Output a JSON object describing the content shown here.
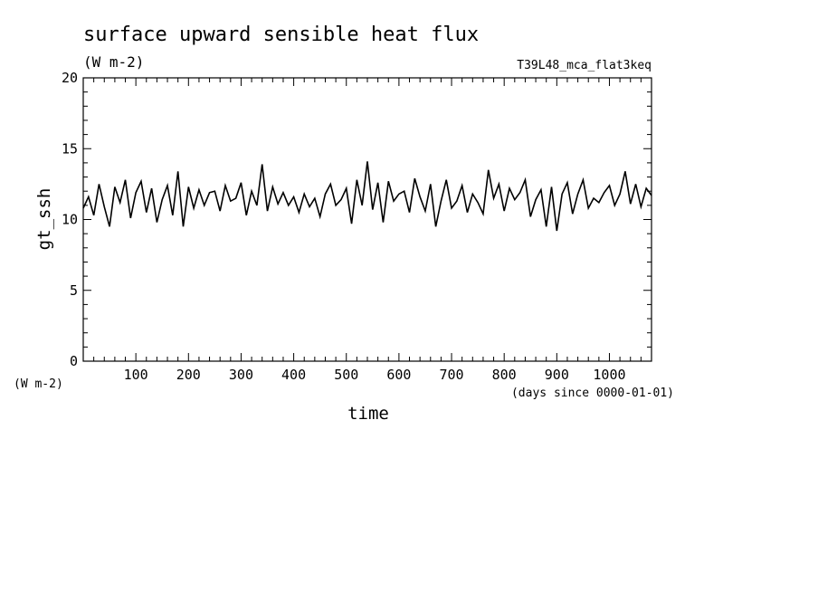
{
  "chart_data": {
    "type": "line",
    "title": "surface upward sensible heat flux",
    "units": "(W m-2)",
    "run_id": "T39L48_mca_flat3keq",
    "ylabel": "gt_ssh",
    "y_units_label": "(W m-2)",
    "xlabel": "time",
    "x_units_label": "(days since 0000-01-01)",
    "xlim": [
      0,
      1080
    ],
    "ylim": [
      0,
      20
    ],
    "xticks": [
      100,
      200,
      300,
      400,
      500,
      600,
      700,
      800,
      900,
      1000
    ],
    "yticks": [
      0,
      5,
      10,
      15,
      20
    ],
    "grid": false,
    "series": [
      {
        "color": "#000000",
        "x": [
          0,
          10,
          20,
          30,
          40,
          50,
          60,
          70,
          80,
          90,
          100,
          110,
          120,
          130,
          140,
          150,
          160,
          170,
          180,
          190,
          200,
          210,
          220,
          230,
          240,
          250,
          260,
          270,
          280,
          290,
          300,
          310,
          320,
          330,
          340,
          350,
          360,
          370,
          380,
          390,
          400,
          410,
          420,
          430,
          440,
          450,
          460,
          470,
          480,
          490,
          500,
          510,
          520,
          530,
          540,
          550,
          560,
          570,
          580,
          590,
          600,
          610,
          620,
          630,
          640,
          650,
          660,
          670,
          680,
          690,
          700,
          710,
          720,
          730,
          740,
          750,
          760,
          770,
          780,
          790,
          800,
          810,
          820,
          830,
          840,
          850,
          860,
          870,
          880,
          890,
          900,
          910,
          920,
          930,
          940,
          950,
          960,
          970,
          980,
          990,
          1000,
          1010,
          1020,
          1030,
          1040,
          1050,
          1060,
          1070,
          1080
        ],
        "y": [
          10.8,
          11.6,
          10.3,
          12.5,
          10.9,
          9.5,
          12.3,
          11.2,
          12.8,
          10.1,
          11.9,
          12.7,
          10.5,
          12.2,
          9.8,
          11.4,
          12.4,
          10.3,
          13.4,
          9.5,
          12.3,
          10.8,
          12.1,
          11.0,
          11.9,
          12.0,
          10.6,
          12.4,
          11.3,
          11.5,
          12.6,
          10.3,
          12.0,
          11.0,
          13.9,
          10.6,
          12.3,
          11.1,
          11.9,
          11.0,
          11.6,
          10.5,
          11.8,
          10.9,
          11.5,
          10.2,
          11.8,
          12.5,
          11.0,
          11.4,
          12.2,
          9.7,
          12.8,
          11.0,
          14.1,
          10.7,
          12.6,
          9.8,
          12.7,
          11.3,
          11.8,
          12.0,
          10.5,
          12.9,
          11.6,
          10.6,
          12.5,
          9.5,
          11.3,
          12.8,
          10.8,
          11.3,
          12.4,
          10.5,
          11.8,
          11.2,
          10.4,
          13.5,
          11.5,
          12.5,
          10.6,
          12.2,
          11.4,
          11.9,
          12.8,
          10.2,
          11.4,
          12.1,
          9.5,
          12.3,
          9.2,
          11.8,
          12.6,
          10.4,
          11.8,
          12.8,
          10.8,
          11.5,
          11.2,
          11.9,
          12.4,
          11.0,
          11.8,
          13.4,
          11.1,
          12.5,
          10.9,
          12.2,
          11.7
        ]
      }
    ]
  }
}
